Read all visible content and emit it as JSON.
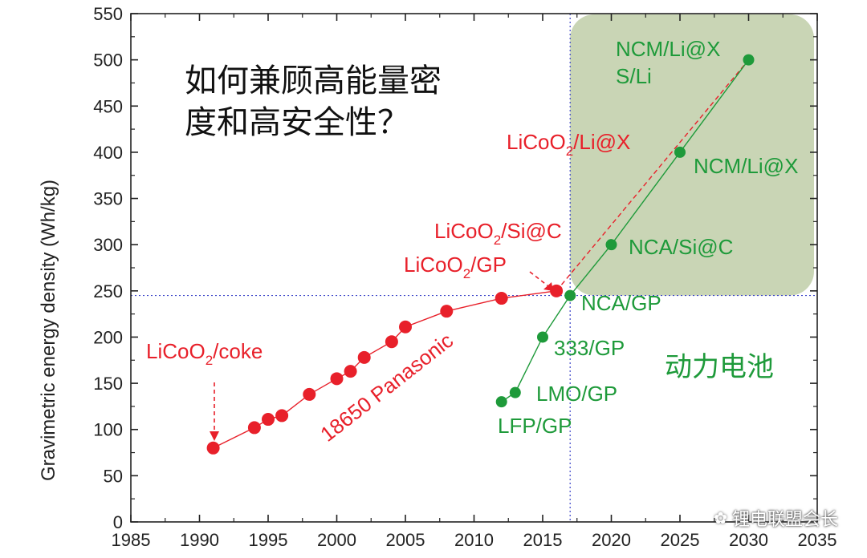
{
  "chart_data": {
    "type": "scatter",
    "title": "",
    "xlabel": "",
    "ylabel": "Gravimetric energy density (Wh/kg)",
    "xlim": [
      1985,
      2035
    ],
    "ylim": [
      0,
      550
    ],
    "x_ticks": [
      "1985",
      "1990",
      "1995",
      "2000",
      "2005",
      "2010",
      "2015",
      "2020",
      "2025",
      "2030",
      "2035"
    ],
    "y_ticks": [
      "0",
      "50",
      "100",
      "150",
      "200",
      "250",
      "300",
      "350",
      "400",
      "450",
      "500",
      "550"
    ],
    "reference_lines": {
      "x": 2017,
      "y": 245
    },
    "highlight_region": {
      "x_from": 2017,
      "x_to": 2035,
      "y_from": 245,
      "y_to": 550
    },
    "series": [
      {
        "name": "18650 Panasonic",
        "color": "#e8202a",
        "points": [
          {
            "x": 1991,
            "y": 80
          },
          {
            "x": 1994,
            "y": 102
          },
          {
            "x": 1995,
            "y": 111
          },
          {
            "x": 1996,
            "y": 115
          },
          {
            "x": 1998,
            "y": 138
          },
          {
            "x": 2000,
            "y": 155
          },
          {
            "x": 2001,
            "y": 163
          },
          {
            "x": 2002,
            "y": 178
          },
          {
            "x": 2004,
            "y": 195
          },
          {
            "x": 2005,
            "y": 211
          },
          {
            "x": 2008,
            "y": 228
          },
          {
            "x": 2012,
            "y": 242
          },
          {
            "x": 2016,
            "y": 250
          }
        ],
        "projection": [
          {
            "x": 2016,
            "y": 250
          },
          {
            "x": 2030,
            "y": 500
          }
        ]
      },
      {
        "name": "动力电池",
        "color": "#1e9a3a",
        "points": [
          {
            "x": 2012,
            "y": 130
          },
          {
            "x": 2013,
            "y": 140
          },
          {
            "x": 2015,
            "y": 200
          },
          {
            "x": 2017,
            "y": 245
          },
          {
            "x": 2020,
            "y": 300
          },
          {
            "x": 2025,
            "y": 400
          },
          {
            "x": 2030,
            "y": 500
          }
        ]
      }
    ],
    "annotations": {
      "licoo2_coke": {
        "main": "LiCoO",
        "sub": "2",
        "rest": "/coke"
      },
      "licoo2_gp": {
        "main": "LiCoO",
        "sub": "2",
        "rest": "/GP"
      },
      "licoo2_sic": {
        "main": "LiCoO",
        "sub": "2",
        "rest": "/Si@C"
      },
      "licoo2_lix": {
        "main": "LiCoO",
        "sub": "2",
        "rest": "/Li@X"
      },
      "panasonic": "18650 Panasonic",
      "lfp": "LFP/GP",
      "lmo": "LMO/GP",
      "n333": "333/GP",
      "nca_gp": "NCA/GP",
      "nca_sic": "NCA/Si@C",
      "ncm_lix": "NCM/Li@X",
      "ncm_lix_top": "NCM/Li@X",
      "s_li": "S/Li",
      "power_battery": "动力电池",
      "question_line1": "如何兼顾高能量密",
      "question_line2": "度和高安全性？"
    },
    "colors": {
      "red": "#e8202a",
      "green": "#1e9a3a",
      "region": "#c9d5b5",
      "axis": "#222222",
      "ref_line": "#3a43c8"
    }
  },
  "watermark": {
    "icon": "wechat-icon",
    "text": "锂电联盟会长"
  }
}
